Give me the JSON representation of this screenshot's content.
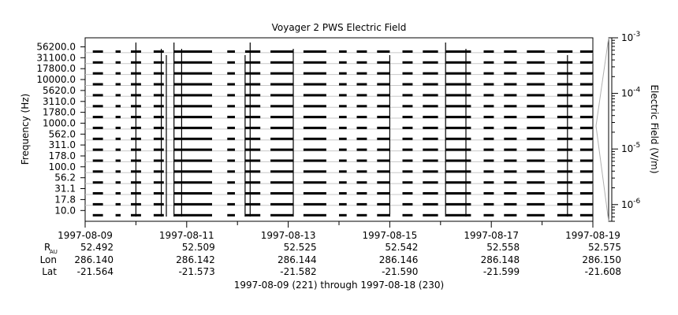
{
  "chart_data": {
    "type": "line",
    "title": "Voyager 2 PWS Electric Field",
    "ylabel": "Frequency (Hz)",
    "y2label": "Electric Field (V/m)",
    "y2scale": "log",
    "y2lim": [
      5e-07,
      0.001
    ],
    "y2_ticks": [
      {
        "base": "10",
        "exp": "-3",
        "value": 0.001
      },
      {
        "base": "10",
        "exp": "-4",
        "value": 0.0001
      },
      {
        "base": "10",
        "exp": "-5",
        "value": 1e-05
      },
      {
        "base": "10",
        "exp": "-6",
        "value": 1e-06
      }
    ],
    "channels": [
      "56200.0",
      "31100.0",
      "17800.0",
      "10000.0",
      "5620.0",
      "3110.0",
      "1780.0",
      "1000.0",
      "562.0",
      "311.0",
      "178.0",
      "100.0",
      "56.2",
      "31.1",
      "17.8",
      "10.0"
    ],
    "xlim": [
      "1997-08-09",
      "1997-08-19"
    ],
    "x_tick_dates": [
      "1997-08-09",
      "1997-08-11",
      "1997-08-13",
      "1997-08-15",
      "1997-08-17",
      "1997-08-19"
    ],
    "ephemeris": {
      "labels": {
        "r_main": "R",
        "r_sub": "AU",
        "lon": "Lon",
        "lat": "Lat"
      },
      "columns": [
        {
          "r": "52.492",
          "lon": "286.140",
          "lat": "-21.564"
        },
        {
          "r": "52.509",
          "lon": "286.142",
          "lat": "-21.573"
        },
        {
          "r": "52.525",
          "lon": "286.144",
          "lat": "-21.582"
        },
        {
          "r": "52.542",
          "lon": "286.146",
          "lat": "-21.590"
        },
        {
          "r": "52.558",
          "lon": "286.148",
          "lat": "-21.599"
        },
        {
          "r": "52.575",
          "lon": "286.150",
          "lat": "-21.608"
        }
      ]
    },
    "xlabel": "1997-08-09 (221) through 1997-08-18 (230)",
    "data_segments_days": [
      [
        0.15,
        0.35
      ],
      [
        0.6,
        0.7
      ],
      [
        0.9,
        1.1
      ],
      [
        1.35,
        1.55
      ],
      [
        1.75,
        2.5
      ],
      [
        2.8,
        2.95
      ],
      [
        3.15,
        3.45
      ],
      [
        3.65,
        4.1
      ],
      [
        4.3,
        4.75
      ],
      [
        5.0,
        5.15
      ],
      [
        5.35,
        5.55
      ],
      [
        5.75,
        6.0
      ],
      [
        6.25,
        6.45
      ],
      [
        6.65,
        6.95
      ],
      [
        7.1,
        7.6
      ],
      [
        7.85,
        8.05
      ],
      [
        8.25,
        8.5
      ],
      [
        8.7,
        9.05
      ],
      [
        9.3,
        9.6
      ],
      [
        9.75,
        10.0
      ]
    ],
    "spikes_days": [
      1.0,
      1.5,
      1.6,
      1.75,
      1.9,
      3.15,
      3.25,
      4.1,
      6.0,
      7.1,
      7.5,
      9.5
    ]
  }
}
